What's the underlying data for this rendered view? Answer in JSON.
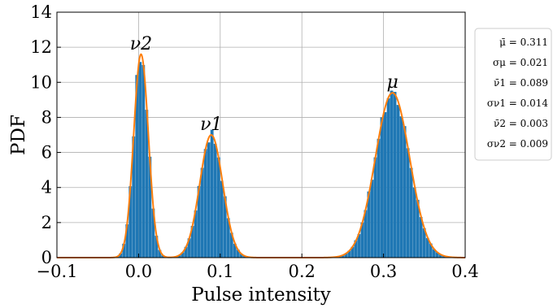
{
  "chart_data": {
    "type": "bar",
    "xlabel": "Pulse intensity",
    "ylabel": "PDF",
    "xlim": [
      -0.1,
      0.4
    ],
    "ylim": [
      0,
      14
    ],
    "xticks": [
      "−0.1",
      "0.0",
      "0.1",
      "0.2",
      "0.3",
      "0.4"
    ],
    "xtick_values": [
      -0.1,
      0.0,
      0.1,
      0.2,
      0.3,
      0.4
    ],
    "yticks": [
      "0",
      "2",
      "4",
      "6",
      "8",
      "10",
      "12",
      "14"
    ],
    "ytick_values": [
      0,
      2,
      4,
      6,
      8,
      10,
      12,
      14
    ],
    "grid": true,
    "legend_position": "outside-right",
    "bar_color": "#1f77b4",
    "fit_color": "#ff7f0e",
    "peaks": [
      {
        "label": "ν2",
        "mean": 0.003,
        "sigma": 0.009,
        "height": 11.6
      },
      {
        "label": "ν1",
        "mean": 0.089,
        "sigma": 0.014,
        "height": 7.0
      },
      {
        "label": "μ",
        "mean": 0.311,
        "sigma": 0.021,
        "height": 9.4
      }
    ],
    "legend_entries": [
      "μ̄ = 0.311",
      "σμ = 0.021",
      "ν̄1 = 0.089",
      "σν1 = 0.014",
      "ν̄2 = 0.003",
      "σν2 = 0.009"
    ],
    "histogram_bin_width": 0.004
  }
}
